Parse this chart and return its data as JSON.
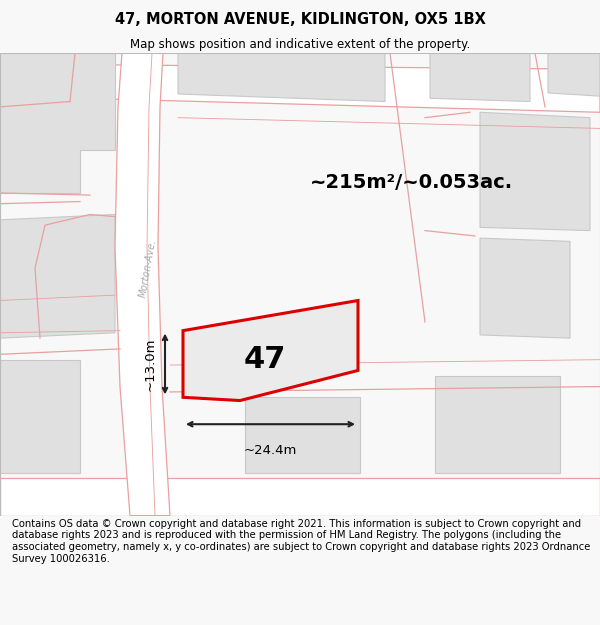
{
  "title": "47, MORTON AVENUE, KIDLINGTON, OX5 1BX",
  "subtitle": "Map shows position and indicative extent of the property.",
  "area_label": "~215m²/~0.053ac.",
  "plot_number": "47",
  "dim_width": "~24.4m",
  "dim_height": "~13.0m",
  "street_label": "Morton-Ave.",
  "footer": "Contains OS data © Crown copyright and database right 2021. This information is subject to Crown copyright and database rights 2023 and is reproduced with the permission of HM Land Registry. The polygons (including the associated geometry, namely x, y co-ordinates) are subject to Crown copyright and database rights 2023 Ordnance Survey 100026316.",
  "bg_color": "#f8f8f8",
  "map_bg": "#f8f8f8",
  "road_color": "#ffffff",
  "plot_outline_color": "#dd0000",
  "plot_fill_color": "#ebebeb",
  "block_color": "#e0e0e0",
  "block_edge_color": "#c8c8c8",
  "road_line_color": "#e8a0a0",
  "road_fill_color": "#ffffff",
  "dim_line_color": "#222222",
  "text_color": "#000000",
  "street_text_color": "#aaaaaa",
  "footer_fontsize": 7.2,
  "title_fontsize": 10.5,
  "subtitle_fontsize": 8.5,
  "area_fontsize": 14,
  "plot_num_fontsize": 22,
  "dim_fontsize": 9.5,
  "street_fontsize": 7
}
